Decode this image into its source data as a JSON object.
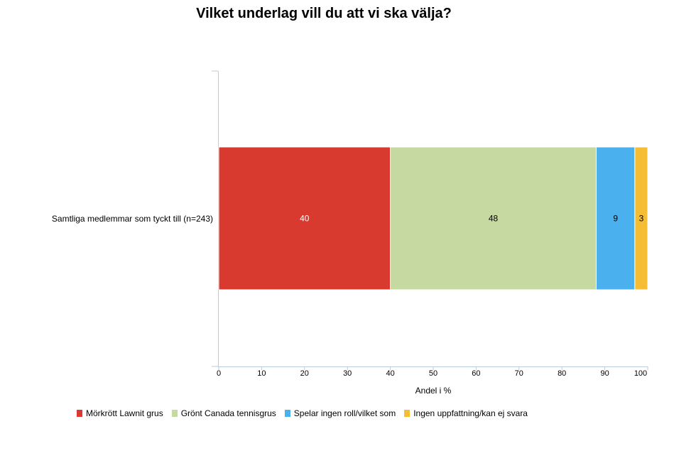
{
  "chart_data": {
    "type": "bar",
    "orientation": "horizontal",
    "stacked": true,
    "title": "Vilket underlag vill du att vi ska välja?",
    "categories": [
      "Samtliga medlemmar som tyckt till (n=243)"
    ],
    "series": [
      {
        "name": "Mörkrött Lawnit grus",
        "values": [
          40
        ],
        "color": "#d83a2f"
      },
      {
        "name": "Grönt Canada tennisgrus",
        "values": [
          48
        ],
        "color": "#c6d9a0"
      },
      {
        "name": "Spelar ingen roll/vilket som",
        "values": [
          9
        ],
        "color": "#4ab0ee"
      },
      {
        "name": "Ingen uppfattning/kan ej svara",
        "values": [
          3
        ],
        "color": "#f5bd33"
      }
    ],
    "xlabel": "Andel i %",
    "ylabel": "",
    "xlim": [
      0,
      100
    ],
    "xticks": [
      "0",
      "10",
      "20",
      "30",
      "40",
      "50",
      "60",
      "70",
      "80",
      "90",
      "100"
    ],
    "grid": false,
    "legend": "bottom-left"
  }
}
